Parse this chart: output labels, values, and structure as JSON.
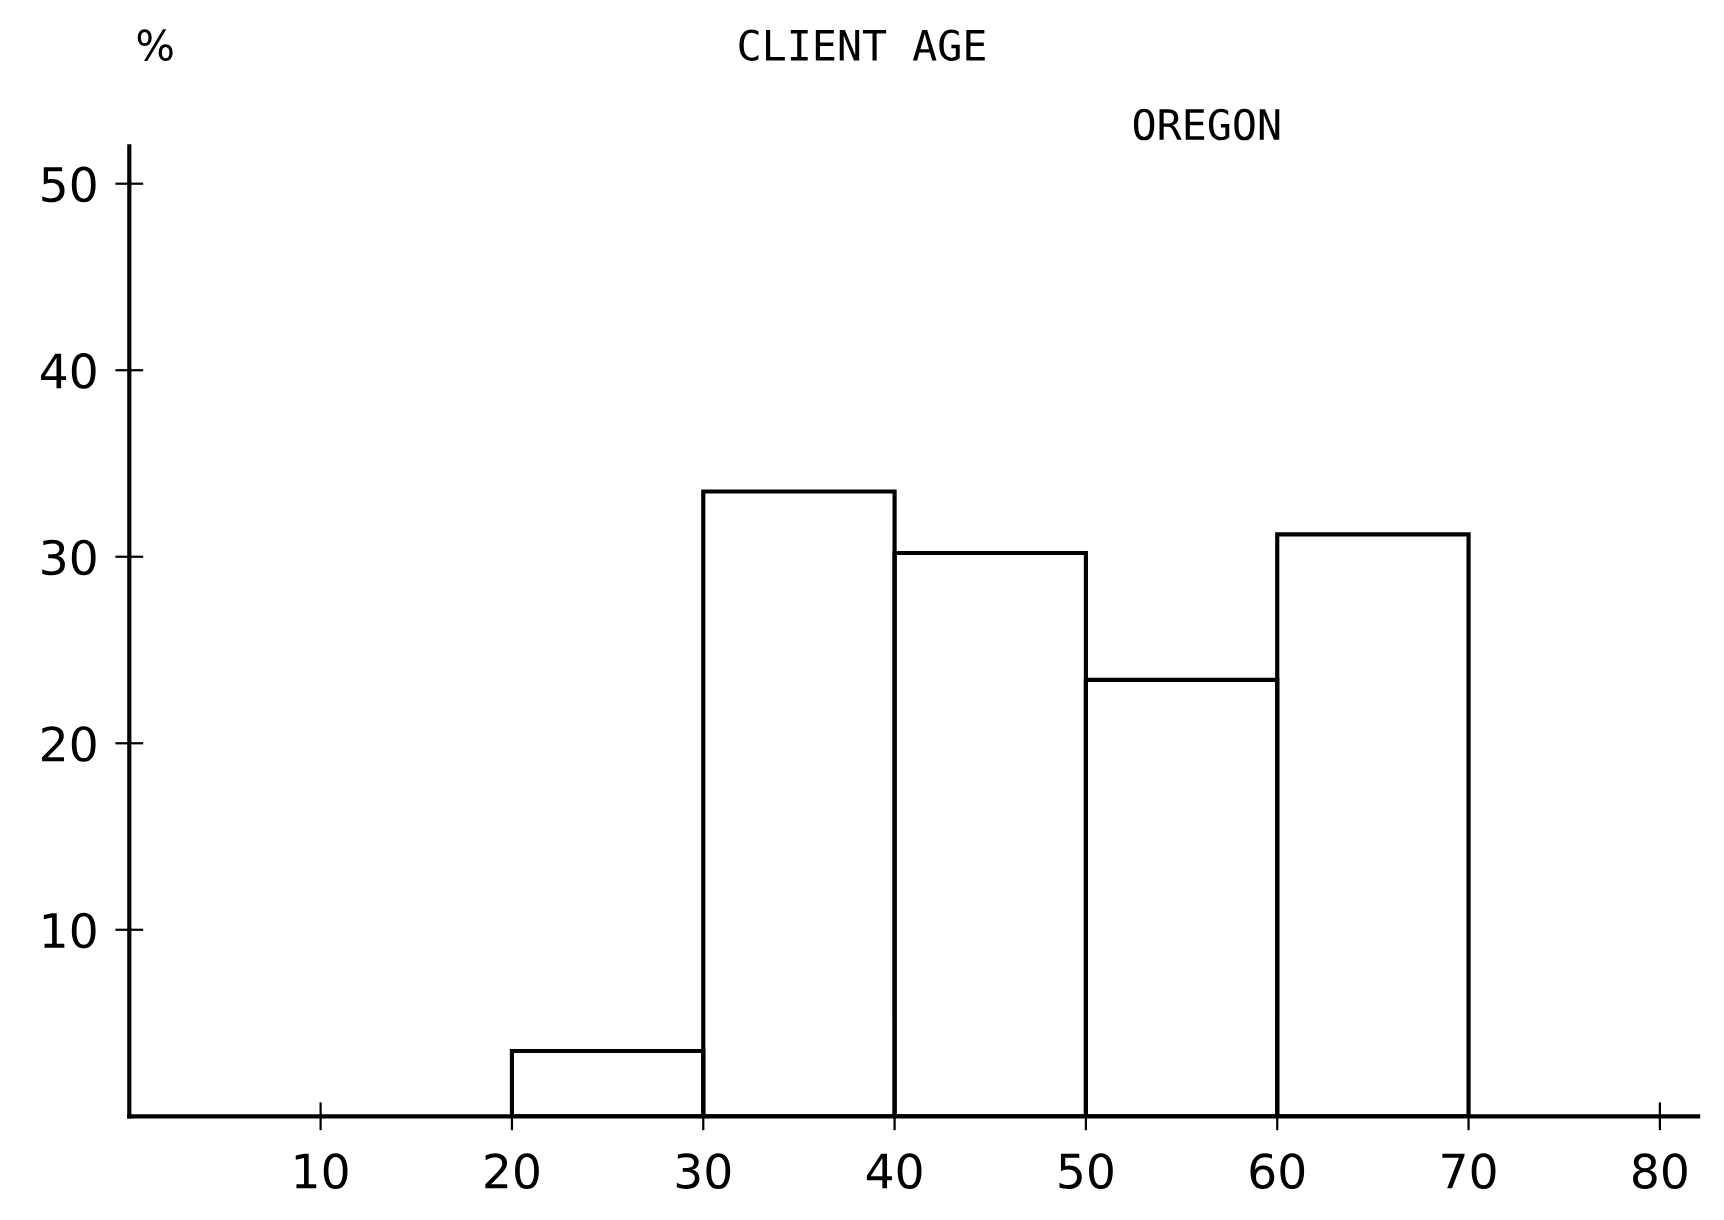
{
  "chart_data": {
    "type": "histogram",
    "title": "CLIENT AGE",
    "subtitle": "OREGON",
    "ylabel": "%",
    "bins": [
      20,
      30,
      40,
      50,
      60,
      70
    ],
    "values": [
      3.5,
      33.5,
      30.2,
      23.4,
      31.2
    ],
    "color": "#000000",
    "xlim": [
      0,
      82
    ],
    "ylim": [
      0,
      52
    ],
    "xticks": [
      10,
      20,
      30,
      40,
      50,
      60,
      70,
      80
    ],
    "yticks": [
      10,
      20,
      30,
      40,
      50
    ],
    "grid": false,
    "legend": false
  }
}
